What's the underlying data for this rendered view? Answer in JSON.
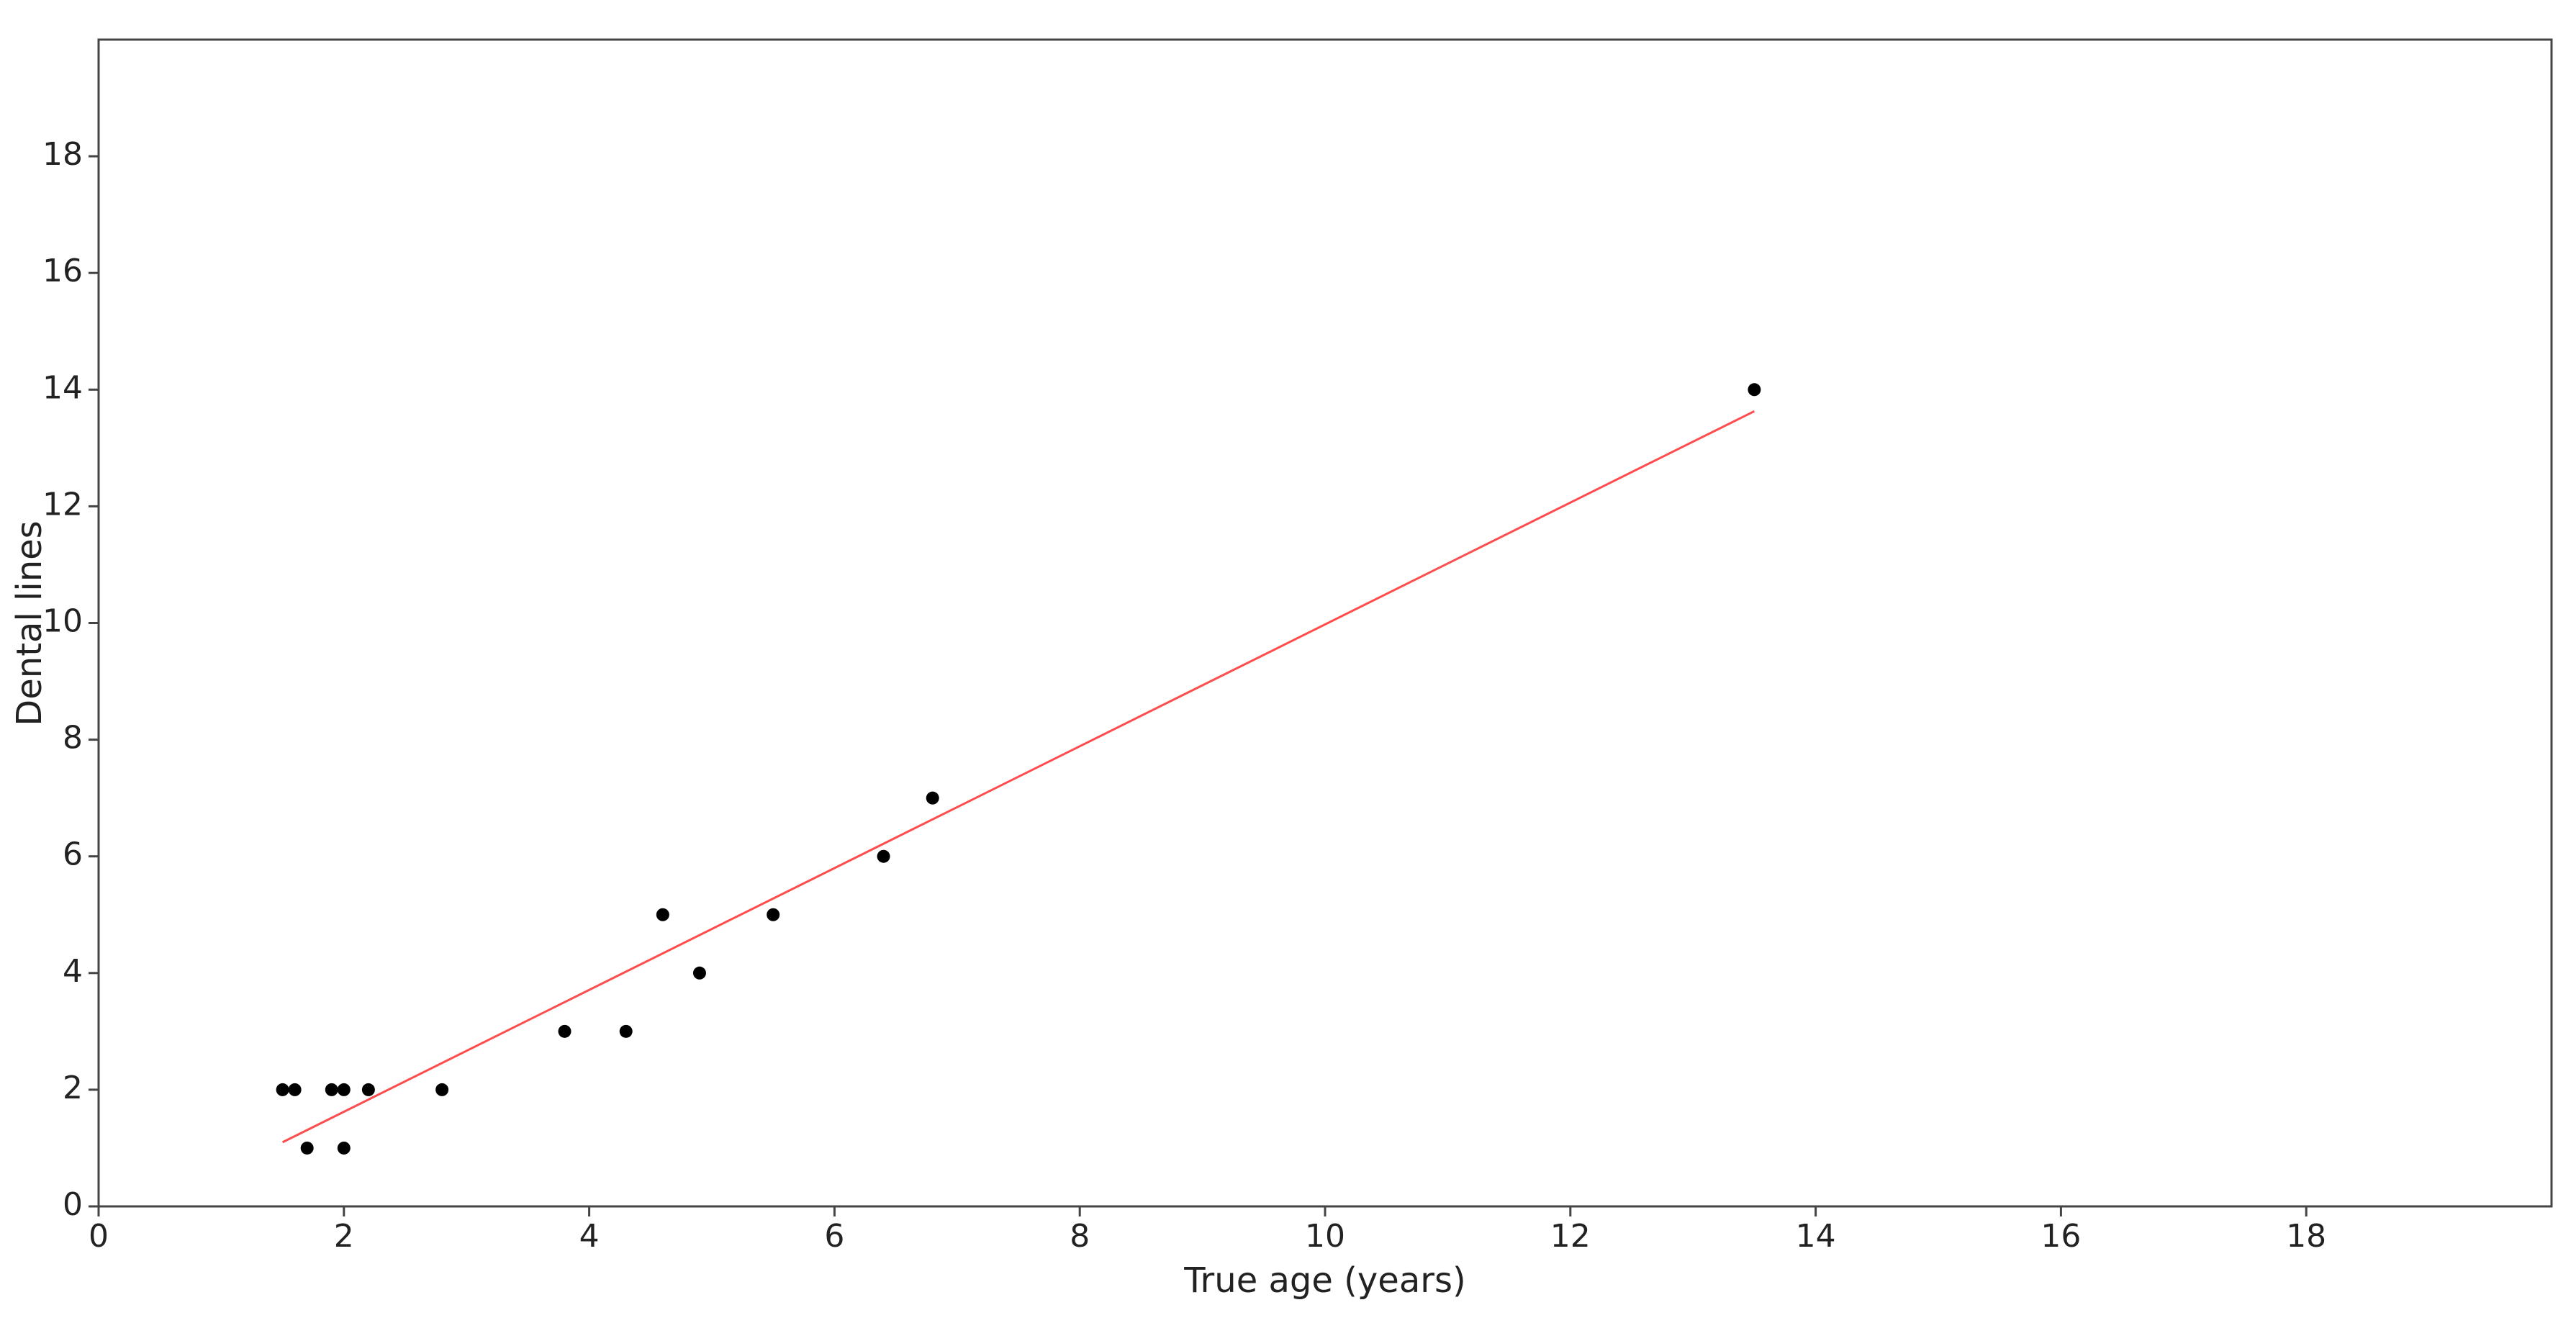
{
  "chart_data": {
    "type": "scatter",
    "x_label": "True age (years)",
    "y_label": "Dental lines",
    "xlim": [
      0,
      20
    ],
    "ylim": [
      0,
      20
    ],
    "xticks": [
      0,
      2,
      4,
      6,
      8,
      10,
      12,
      14,
      16,
      18
    ],
    "yticks": [
      0,
      2,
      4,
      6,
      8,
      10,
      12,
      14,
      16,
      18
    ],
    "grid": false,
    "series": [
      {
        "type": "scatter",
        "color": "#000000",
        "x": [
          1.5,
          1.6,
          1.7,
          1.9,
          2.0,
          2.0,
          2.2,
          2.8,
          3.8,
          4.3,
          4.6,
          4.9,
          5.5,
          6.4,
          6.8,
          13.5
        ],
        "values": [
          2,
          2,
          1,
          2,
          2,
          1,
          2,
          2,
          3,
          3,
          5,
          4,
          5,
          6,
          7,
          14
        ]
      },
      {
        "type": "line",
        "color": "#ff4d4d",
        "x": [
          1.5,
          13.5
        ],
        "values": [
          1.1,
          13.63
        ]
      }
    ]
  }
}
